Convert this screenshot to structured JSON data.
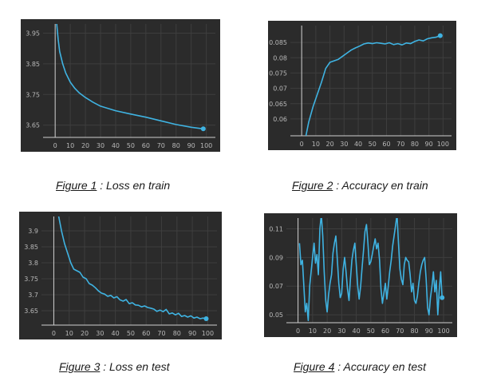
{
  "colors": {
    "background": "#2b2b2b",
    "grid": "#3e3e3e",
    "line": "#3fb3e2",
    "axis": "#cfcfcf",
    "tick_text": "#b8b8b8"
  },
  "captions": [
    {
      "figure": "Figure 1",
      "rest": " : Loss en train"
    },
    {
      "figure": "Figure 2",
      "rest": " : Accuracy en train"
    },
    {
      "figure": "Figure 3",
      "rest": " : Loss en test"
    },
    {
      "figure": "Figure 4",
      "rest": " : Accuracy en test"
    }
  ],
  "chart_data": [
    {
      "type": "line",
      "xlim": [
        -8,
        106
      ],
      "ylim": [
        3.61,
        3.98
      ],
      "xticks": [
        0,
        10,
        20,
        30,
        40,
        50,
        60,
        70,
        80,
        90,
        100
      ],
      "yticks": [
        3.65,
        3.75,
        3.85,
        3.95
      ],
      "ytick_labels": [
        "3.65",
        "3.75",
        "3.85",
        "3.95"
      ],
      "grid": true,
      "series": [
        {
          "x": [
            0,
            1,
            2,
            3,
            5,
            7,
            10,
            13,
            16,
            20,
            25,
            30,
            40,
            50,
            60,
            70,
            80,
            90,
            98
          ],
          "y": [
            4.05,
            3.98,
            3.93,
            3.89,
            3.85,
            3.82,
            3.79,
            3.77,
            3.755,
            3.74,
            3.725,
            3.712,
            3.697,
            3.686,
            3.676,
            3.664,
            3.652,
            3.643,
            3.638
          ]
        }
      ]
    },
    {
      "type": "line",
      "xlim": [
        -8,
        106
      ],
      "ylim": [
        0.0545,
        0.0905
      ],
      "xticks": [
        0,
        10,
        20,
        30,
        40,
        50,
        60,
        70,
        80,
        90,
        100
      ],
      "yticks": [
        0.06,
        0.065,
        0.07,
        0.075,
        0.08,
        0.085
      ],
      "ytick_labels": [
        "0.06",
        "0.065",
        "0.07",
        "0.075",
        "0.08",
        "0.085"
      ],
      "grid": true,
      "series": [
        {
          "x": [
            3,
            5,
            8,
            11,
            14,
            17,
            20,
            23,
            26,
            29,
            32,
            35,
            38,
            41,
            44,
            47,
            50,
            53,
            56,
            59,
            62,
            65,
            68,
            71,
            74,
            77,
            80,
            83,
            86,
            89,
            92,
            95,
            98
          ],
          "y": [
            0.0545,
            0.059,
            0.064,
            0.068,
            0.072,
            0.0765,
            0.0785,
            0.079,
            0.0795,
            0.0805,
            0.0815,
            0.0825,
            0.0832,
            0.0838,
            0.0845,
            0.0848,
            0.0846,
            0.0849,
            0.0847,
            0.0845,
            0.0849,
            0.0843,
            0.0846,
            0.0842,
            0.0848,
            0.0846,
            0.0853,
            0.0858,
            0.0855,
            0.0862,
            0.0865,
            0.0867,
            0.0872
          ]
        }
      ]
    },
    {
      "type": "line",
      "xlim": [
        -8,
        106
      ],
      "ylim": [
        3.605,
        3.945
      ],
      "xticks": [
        0,
        10,
        20,
        30,
        40,
        50,
        60,
        70,
        80,
        90,
        100
      ],
      "yticks": [
        3.65,
        3.7,
        3.75,
        3.8,
        3.85,
        3.9
      ],
      "ytick_labels": [
        "3.65",
        "3.7",
        "3.75",
        "3.8",
        "3.85",
        "3.9"
      ],
      "grid": true,
      "series": [
        {
          "x": [
            3,
            5,
            7,
            9,
            11,
            13,
            15,
            17,
            19,
            21,
            23,
            25,
            27,
            29,
            31,
            33,
            35,
            37,
            39,
            41,
            43,
            45,
            47,
            49,
            51,
            53,
            55,
            57,
            59,
            61,
            63,
            65,
            67,
            69,
            71,
            73,
            75,
            77,
            79,
            81,
            83,
            85,
            87,
            89,
            91,
            93,
            95,
            97,
            99
          ],
          "y": [
            3.95,
            3.9,
            3.86,
            3.83,
            3.8,
            3.78,
            3.775,
            3.77,
            3.755,
            3.75,
            3.735,
            3.73,
            3.722,
            3.712,
            3.705,
            3.702,
            3.695,
            3.698,
            3.69,
            3.694,
            3.684,
            3.68,
            3.685,
            3.672,
            3.675,
            3.668,
            3.667,
            3.662,
            3.665,
            3.66,
            3.658,
            3.655,
            3.648,
            3.652,
            3.647,
            3.654,
            3.64,
            3.643,
            3.637,
            3.642,
            3.632,
            3.635,
            3.63,
            3.634,
            3.627,
            3.63,
            3.625,
            3.627,
            3.625
          ]
        }
      ]
    },
    {
      "type": "line",
      "xlim": [
        -8,
        106
      ],
      "ylim": [
        0.0445,
        0.1175
      ],
      "xticks": [
        0,
        10,
        20,
        30,
        40,
        50,
        60,
        70,
        80,
        90,
        100
      ],
      "yticks": [
        0.05,
        0.07,
        0.09,
        0.11
      ],
      "ytick_labels": [
        "0.05",
        "0.07",
        "0.09",
        "0.11"
      ],
      "grid": true,
      "series": [
        {
          "x": [
            1,
            2,
            3,
            4,
            5,
            6,
            7,
            8,
            9,
            10,
            11,
            12,
            13,
            14,
            15,
            16,
            17,
            18,
            19,
            20,
            21,
            22,
            23,
            24,
            25,
            26,
            27,
            28,
            29,
            30,
            31,
            32,
            33,
            34,
            35,
            36,
            37,
            38,
            39,
            40,
            41,
            42,
            43,
            44,
            45,
            46,
            47,
            48,
            49,
            50,
            51,
            52,
            53,
            54,
            55,
            56,
            57,
            58,
            59,
            60,
            61,
            62,
            63,
            64,
            65,
            66,
            67,
            68,
            69,
            70,
            71,
            72,
            73,
            74,
            75,
            76,
            77,
            78,
            79,
            80,
            81,
            82,
            83,
            84,
            85,
            86,
            87,
            88,
            89,
            90,
            91,
            92,
            93,
            94,
            95,
            96,
            97,
            98,
            99
          ],
          "y": [
            0.1,
            0.085,
            0.088,
            0.07,
            0.052,
            0.058,
            0.046,
            0.07,
            0.08,
            0.09,
            0.1,
            0.086,
            0.092,
            0.078,
            0.11,
            0.12,
            0.105,
            0.08,
            0.06,
            0.052,
            0.064,
            0.072,
            0.078,
            0.093,
            0.1,
            0.105,
            0.088,
            0.072,
            0.062,
            0.065,
            0.082,
            0.09,
            0.08,
            0.068,
            0.06,
            0.075,
            0.088,
            0.095,
            0.1,
            0.085,
            0.07,
            0.061,
            0.07,
            0.083,
            0.095,
            0.108,
            0.113,
            0.1,
            0.085,
            0.087,
            0.092,
            0.098,
            0.103,
            0.096,
            0.1,
            0.088,
            0.068,
            0.058,
            0.065,
            0.072,
            0.061,
            0.07,
            0.08,
            0.088,
            0.098,
            0.105,
            0.112,
            0.12,
            0.1,
            0.082,
            0.075,
            0.071,
            0.085,
            0.09,
            0.088,
            0.087,
            0.078,
            0.066,
            0.072,
            0.06,
            0.058,
            0.063,
            0.072,
            0.08,
            0.085,
            0.088,
            0.09,
            0.075,
            0.055,
            0.05,
            0.062,
            0.07,
            0.08,
            0.066,
            0.074,
            0.05,
            0.067,
            0.08,
            0.062
          ]
        }
      ]
    }
  ]
}
